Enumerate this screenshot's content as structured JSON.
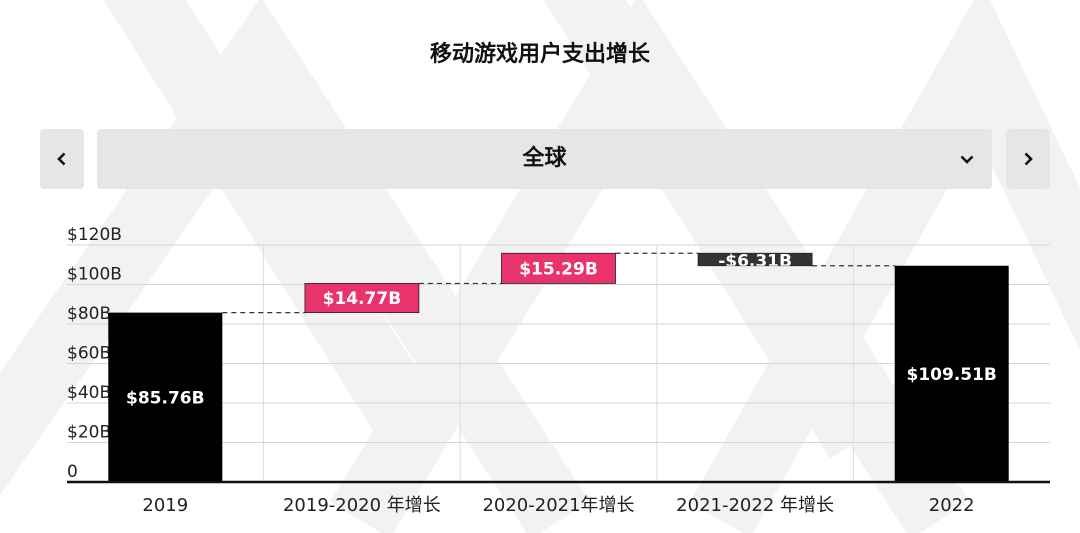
{
  "title": "移动游戏用户支出增长",
  "selector": {
    "value": "全球",
    "prev_icon": "chevron-left-icon",
    "next_icon": "chevron-right-icon",
    "dropdown_icon": "chevron-down-icon"
  },
  "colors": {
    "total": "#000000",
    "increase": "#e8336d",
    "decrease": "#333333",
    "background_deco": "#f3f3f3",
    "selector_bg": "#e6e6e6"
  },
  "chart_data": {
    "type": "bar",
    "subtype": "waterfall",
    "title": "移动游戏用户支出增长",
    "categories": [
      "2019",
      "2019-2020 年增长",
      "2020-2021年增长",
      "2021-2022 年增长",
      "2022"
    ],
    "values": [
      85.76,
      14.77,
      15.29,
      -6.31,
      109.51
    ],
    "kinds": [
      "total",
      "increase",
      "increase",
      "decrease",
      "total"
    ],
    "data_labels": [
      "$85.76B",
      "$14.77B",
      "$15.29B",
      "-$6.31B",
      "$109.51B"
    ],
    "y_ticks": [
      "0",
      "$20B",
      "$40B",
      "$60B",
      "$80B",
      "$100B",
      "$120B"
    ],
    "ylim": [
      0,
      120
    ],
    "y_unit": "$B",
    "grid": true,
    "legend": "none"
  }
}
